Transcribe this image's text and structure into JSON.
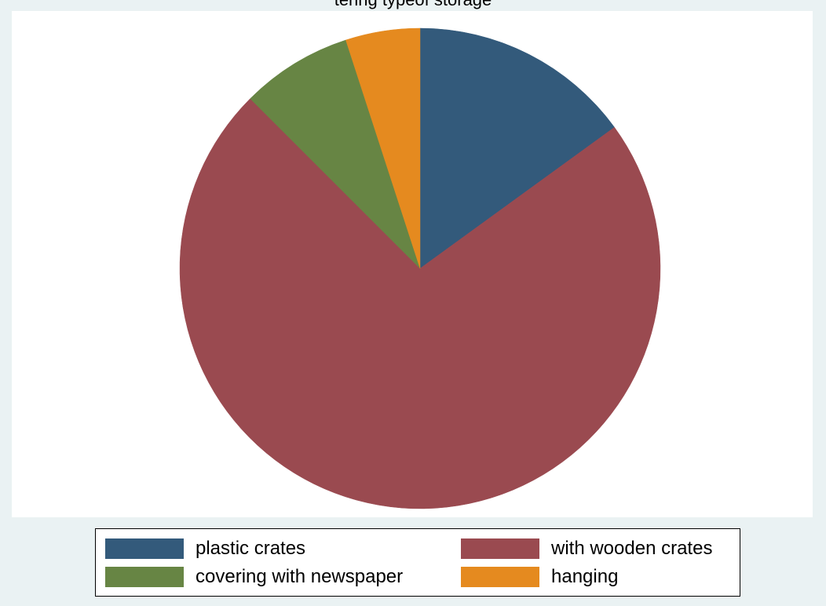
{
  "chart_data": {
    "type": "pie",
    "title": "tering typeof storage",
    "slices": [
      {
        "label": "plastic crates",
        "value": 15.0,
        "color": "#335a7b"
      },
      {
        "label": "with wooden crates",
        "value": 72.5,
        "color": "#9a4a50"
      },
      {
        "label": "covering with newspaper",
        "value": 7.5,
        "color": "#678544"
      },
      {
        "label": "hanging",
        "value": 5.0,
        "color": "#e58a1f"
      }
    ],
    "legend_position": "bottom",
    "start_angle_deg": 0,
    "direction": "clockwise"
  }
}
